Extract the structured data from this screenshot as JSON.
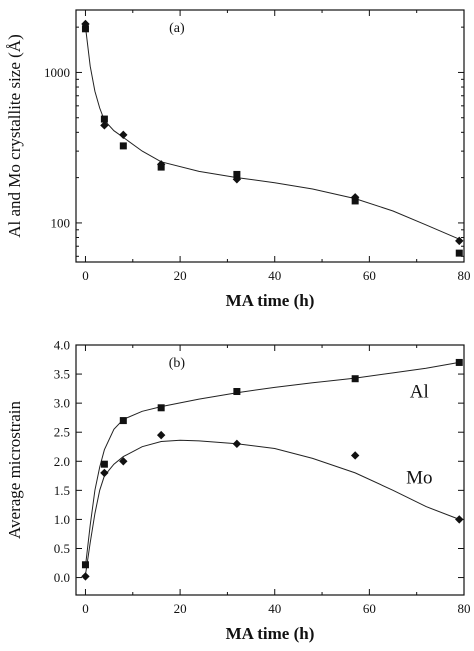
{
  "chart_data": [
    {
      "type": "scatter",
      "panel_label": "(a)",
      "xlabel": "MA time (h)",
      "ylabel": "Al and Mo crystallite size (Å)",
      "xlim": [
        -2,
        80
      ],
      "ylim": [
        55,
        2600
      ],
      "yscale": "log",
      "xticks": [
        0,
        20,
        40,
        60,
        80
      ],
      "yticks": [
        100,
        1000
      ],
      "minor_x": [
        10,
        30,
        50,
        70
      ],
      "minor_y": [
        60,
        70,
        80,
        90,
        200,
        300,
        400,
        500,
        600,
        700,
        800,
        900,
        2000
      ],
      "series": [
        {
          "marker": "square",
          "x": [
            0,
            4,
            8,
            16,
            32,
            57,
            79
          ],
          "y": [
            1950,
            490,
            325,
            235,
            210,
            140,
            63
          ]
        },
        {
          "marker": "diamond",
          "x": [
            0,
            4,
            8,
            16,
            32,
            57,
            79
          ],
          "y": [
            2100,
            445,
            385,
            245,
            195,
            148,
            76
          ]
        }
      ],
      "fit": {
        "x": [
          0,
          1,
          2,
          3,
          4,
          6,
          8,
          12,
          16,
          24,
          32,
          40,
          48,
          57,
          65,
          72,
          79
        ],
        "y": [
          2000,
          1100,
          750,
          580,
          480,
          410,
          370,
          300,
          255,
          220,
          200,
          185,
          168,
          145,
          120,
          97,
          78
        ]
      }
    },
    {
      "type": "scatter",
      "panel_label": "(b)",
      "xlabel": "MA time (h)",
      "ylabel": "Average microstrain",
      "xlim": [
        -2,
        80
      ],
      "ylim": [
        -0.3,
        4.0
      ],
      "xticks": [
        0,
        20,
        40,
        60,
        80
      ],
      "yticks": [
        0.0,
        0.5,
        1.0,
        1.5,
        2.0,
        2.5,
        3.0,
        3.5,
        4.0
      ],
      "ytick_labels": [
        "0.0",
        "0.5",
        "1.0",
        "1.5",
        "2.0",
        "2.5",
        "3.0",
        "3.5",
        "4.0"
      ],
      "minor_x": [
        10,
        30,
        50,
        70
      ],
      "series": [
        {
          "name": "Al",
          "marker": "square",
          "x": [
            0,
            4,
            8,
            16,
            32,
            57,
            79
          ],
          "y": [
            0.22,
            1.95,
            2.7,
            2.92,
            3.2,
            3.42,
            3.7
          ],
          "fit_x": [
            0,
            1,
            2,
            3,
            4,
            6,
            8,
            12,
            16,
            24,
            32,
            40,
            48,
            57,
            65,
            72,
            79
          ],
          "fit_y": [
            0.2,
            0.9,
            1.5,
            1.9,
            2.2,
            2.55,
            2.72,
            2.86,
            2.94,
            3.07,
            3.18,
            3.27,
            3.35,
            3.43,
            3.52,
            3.6,
            3.7
          ]
        },
        {
          "name": "Mo",
          "marker": "diamond",
          "x": [
            0,
            4,
            8,
            16,
            32,
            57,
            79
          ],
          "y": [
            0.02,
            1.8,
            2.0,
            2.45,
            2.3,
            2.1,
            1.0
          ],
          "fit_x": [
            0,
            1,
            2,
            3,
            4,
            6,
            8,
            12,
            16,
            20,
            24,
            32,
            40,
            48,
            57,
            65,
            72,
            79
          ],
          "fit_y": [
            0.05,
            0.6,
            1.1,
            1.5,
            1.75,
            1.95,
            2.08,
            2.25,
            2.34,
            2.36,
            2.35,
            2.3,
            2.22,
            2.05,
            1.8,
            1.5,
            1.22,
            1.0
          ]
        }
      ]
    }
  ]
}
